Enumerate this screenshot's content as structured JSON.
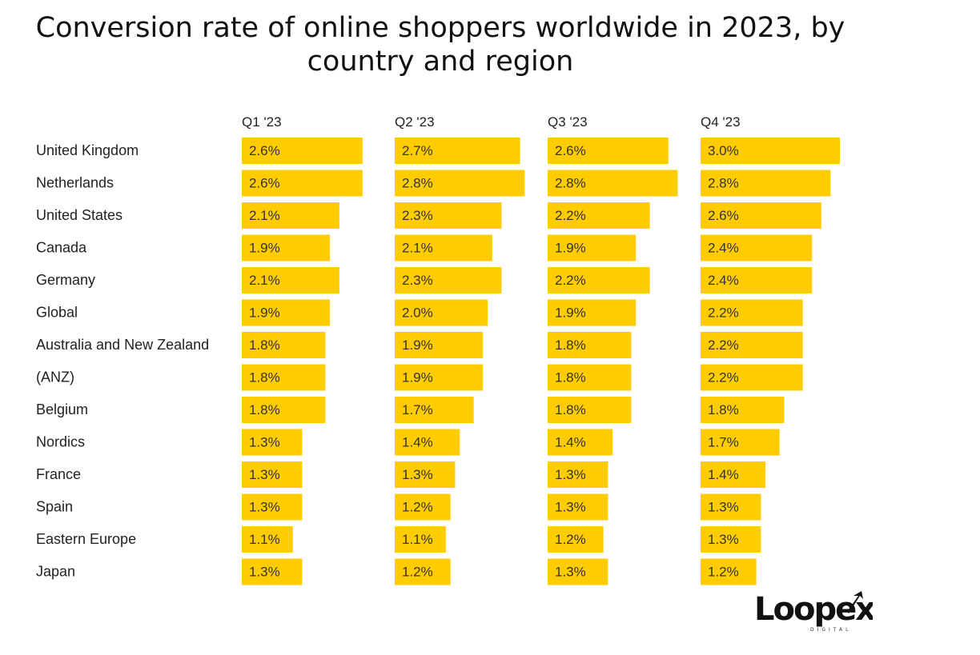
{
  "chart_data": {
    "type": "bar",
    "title": "Conversion rate of online shoppers worldwide in 2023, by country and region",
    "panels": [
      "Q1 '23",
      "Q2 '23",
      "Q3 '23",
      "Q4 '23"
    ],
    "categories": [
      "United Kingdom",
      "Netherlands",
      "United States",
      "Canada",
      "Germany",
      "Global",
      "Australia and New Zealand",
      "(ANZ)",
      "Belgium",
      "Nordics",
      "France",
      "Spain",
      "Eastern Europe",
      "Japan"
    ],
    "series": [
      {
        "name": "Q1 '23",
        "values": [
          2.6,
          2.6,
          2.1,
          1.9,
          2.1,
          1.9,
          1.8,
          1.8,
          1.8,
          1.3,
          1.3,
          1.3,
          1.1,
          1.3
        ]
      },
      {
        "name": "Q2 '23",
        "values": [
          2.7,
          2.8,
          2.3,
          2.1,
          2.3,
          2.0,
          1.9,
          1.9,
          1.7,
          1.4,
          1.3,
          1.2,
          1.1,
          1.2
        ]
      },
      {
        "name": "Q3 '23",
        "values": [
          2.6,
          2.8,
          2.2,
          1.9,
          2.2,
          1.9,
          1.8,
          1.8,
          1.8,
          1.4,
          1.3,
          1.3,
          1.2,
          1.3
        ]
      },
      {
        "name": "Q4 '23",
        "values": [
          3.0,
          2.8,
          2.6,
          2.4,
          2.4,
          2.2,
          2.2,
          2.2,
          1.8,
          1.7,
          1.4,
          1.3,
          1.3,
          1.2
        ]
      }
    ],
    "value_suffix": "%",
    "bar_color": "#FFCC00",
    "grid": false,
    "legend": "none"
  },
  "logo": {
    "name": "Loopex",
    "sub": "DIGITAL"
  }
}
